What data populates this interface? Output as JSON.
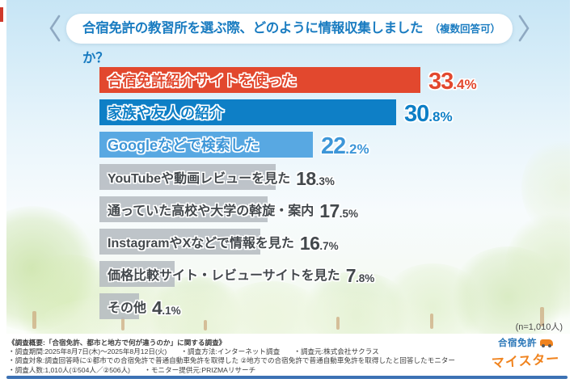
{
  "title": {
    "main": "合宿免許の教習所を選ぶ際、どのように情報収集しましたか？",
    "suffix": "（複数回答可）"
  },
  "chart_data": {
    "type": "bar",
    "orientation": "horizontal",
    "title": "合宿免許の教習所を選ぶ際、どのように情報収集しましたか？（複数回答可）",
    "categories": [
      "合宿免許紹介サイトを使った",
      "家族や友人の紹介",
      "Googleなどで検索した",
      "YouTubeや動画レビューを見た",
      "通っていた高校や大学の斡旋・案内",
      "InstagramやXなどで情報を見た",
      "価格比較サイト・レビューサイトを見た",
      "その他"
    ],
    "values": [
      33.4,
      30.8,
      22.2,
      18.3,
      17.5,
      16.7,
      7.8,
      4.1
    ],
    "unit": "%",
    "xlim": [
      0,
      35
    ],
    "grid": false,
    "legend": "none",
    "bar_colors": [
      "#e2482e",
      "#0e7fc6",
      "#58a8e2",
      "#b4bac0",
      "#b4bac0",
      "#b4bac0",
      "#b4bac0",
      "#b4bac0"
    ],
    "value_text_colors": [
      "#e2482e",
      "#0e7fc6",
      "#3d96d8",
      "#43484c",
      "#43484c",
      "#43484c",
      "#43484c",
      "#43484c"
    ],
    "sample_note": "(n=1,010人)"
  },
  "n_note": "(n=1,010人)",
  "footer": {
    "lines": [
      "《調査概要:「合宿免許、都市と地方で何が違うのか」に関する調査》",
      "・調査期間:2025年8月7日(木)～2025年8月12日(火)　　・調査方法:インターネット調査　　・調査元:株式会社サクラス",
      "・調査対象:調査回答時に①都市での合宿免許で普通自動車免許を取得した ②地方での合宿免許で普通自動車免許を取得したと回答したモニター",
      "・調査人数:1,010人(①504人／②506人)　　・モニター提供元:PRIZMAリサーチ"
    ],
    "logo": {
      "top": "合宿免許",
      "bottom": "マイスター"
    }
  }
}
